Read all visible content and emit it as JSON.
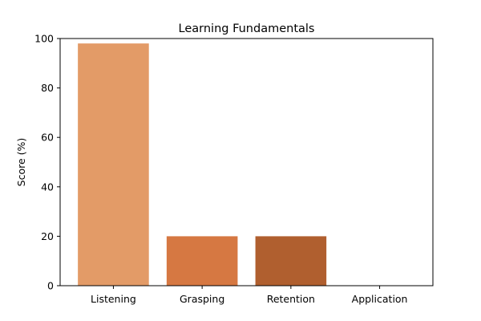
{
  "chart_data": {
    "type": "bar",
    "title": "Learning Fundamentals",
    "xlabel": "",
    "ylabel": "Score (%)",
    "categories": [
      "Listening",
      "Grasping",
      "Retention",
      "Application"
    ],
    "values": [
      98,
      20,
      20,
      0
    ],
    "colors": [
      "#e39b67",
      "#d67842",
      "#b05f2f",
      "#8b4513"
    ],
    "ylim": [
      0,
      100
    ],
    "yticks": [
      "0",
      "20",
      "40",
      "60",
      "80",
      "100"
    ],
    "grid": false,
    "legend": "none"
  }
}
